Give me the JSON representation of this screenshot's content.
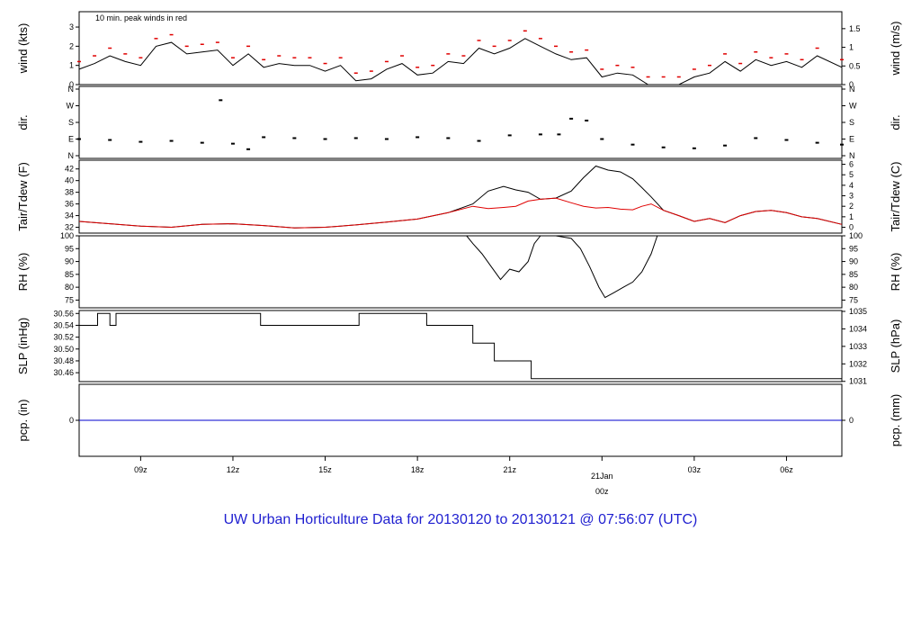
{
  "title": "UW Urban Horticulture Data for 20130120  to  20130121 @ 07:56:07  (UTC)",
  "colors": {
    "title": "#1f1fd0",
    "accent": "#e00000",
    "frame": "#000000",
    "precip": "#0000cc"
  },
  "chart_data": [
    {
      "type": "line",
      "panel": "wind",
      "ylabel_left": "wind (kts)",
      "ylabel_right": "wind (m/s)",
      "annotation": "10 min. peak winds in red",
      "ylim": [
        0,
        3.8
      ],
      "yticks_left": [
        "0",
        "1",
        "2",
        "3"
      ],
      "yticks_right": [
        "0",
        "0.5",
        "1",
        "1.5"
      ],
      "series": [
        {
          "values_hours": [
            7.0,
            7.5,
            8.0,
            8.5,
            9.0,
            9.5,
            10.0,
            10.5,
            11.0,
            11.5,
            12.0,
            12.5,
            13.0,
            13.5,
            14.0,
            14.5,
            15.0,
            15.5,
            16.0,
            16.5,
            17.0,
            17.5,
            18.0,
            18.5,
            19.0,
            19.5,
            20.0,
            20.5,
            21.0,
            21.5,
            22.0,
            22.5,
            23.0,
            23.5,
            24.0,
            24.5,
            25.0,
            25.5,
            26.0,
            26.5,
            27.0,
            27.5,
            28.0,
            28.5,
            29.0,
            29.5,
            30.0,
            30.5,
            31.0,
            31.8
          ],
          "values": [
            0.8,
            1.1,
            1.5,
            1.2,
            1.0,
            2.0,
            2.2,
            1.6,
            1.7,
            1.8,
            1.0,
            1.6,
            0.9,
            1.1,
            1.0,
            1.0,
            0.7,
            1.0,
            0.2,
            0.3,
            0.8,
            1.1,
            0.5,
            0.6,
            1.2,
            1.1,
            1.9,
            1.6,
            1.9,
            2.4,
            2.0,
            1.6,
            1.3,
            1.4,
            0.4,
            0.6,
            0.5,
            0.0,
            0.0,
            0.0,
            0.4,
            0.6,
            1.2,
            0.7,
            1.3,
            1.0,
            1.2,
            0.9,
            1.5,
            0.9
          ]
        }
      ]
    },
    {
      "type": "scatter",
      "panel": "direction",
      "ylabel_left": "dir.",
      "ylabel_right": "dir.",
      "yticks_left": [
        "N",
        "E",
        "S",
        "W",
        "N"
      ],
      "yticks_right": [
        "N",
        "E",
        "S",
        "W",
        "N"
      ],
      "series": [
        {
          "values_hours": [
            7.0,
            8.0,
            9.0,
            10.0,
            11.0,
            11.6,
            12.0,
            12.5,
            13.0,
            14.0,
            15.0,
            16.0,
            17.0,
            18.0,
            19.0,
            20.0,
            21.0,
            22.0,
            22.6,
            23.0,
            23.5,
            24.0,
            25.0,
            26.0,
            27.0,
            28.0,
            29.0,
            30.0,
            31.0,
            31.8
          ],
          "values": [
            90,
            85,
            75,
            80,
            70,
            300,
            65,
            35,
            100,
            95,
            90,
            95,
            90,
            100,
            95,
            80,
            110,
            115,
            115,
            200,
            190,
            90,
            60,
            45,
            40,
            55,
            95,
            85,
            70,
            60
          ]
        }
      ]
    },
    {
      "type": "line",
      "panel": "temperature",
      "ylabel_left": "Tair/Tdew (F)",
      "ylabel_right": "Tair/Tdew (C)",
      "ylim": [
        31,
        43.5
      ],
      "yticks_left": [
        "32",
        "34",
        "36",
        "38",
        "40",
        "42"
      ],
      "yticks_right": [
        "0",
        "1",
        "2",
        "3",
        "4",
        "5",
        "6"
      ],
      "series": [
        {
          "name": "Tair",
          "values_hours": [
            7.0,
            8.0,
            9.0,
            10.0,
            11.0,
            12.0,
            13.0,
            14.0,
            15.0,
            16.0,
            17.0,
            18.0,
            19.0,
            19.8,
            20.3,
            20.8,
            21.2,
            21.6,
            22.0,
            22.5,
            23.0,
            23.4,
            23.8,
            24.2,
            24.6,
            25.0,
            25.3,
            25.6,
            26.0,
            26.5,
            27.0,
            27.5,
            28.0,
            28.5,
            29.0,
            29.5,
            30.0,
            30.5,
            31.0,
            31.8
          ],
          "values": [
            33.0,
            32.6,
            32.2,
            32.0,
            32.5,
            32.6,
            32.3,
            31.9,
            32.0,
            32.4,
            32.9,
            33.4,
            34.5,
            36.0,
            38.2,
            39.0,
            38.4,
            38.0,
            36.8,
            37.0,
            38.2,
            40.5,
            42.5,
            41.8,
            41.5,
            40.3,
            38.8,
            37.2,
            34.9,
            34.0,
            33.0,
            33.5,
            32.8,
            34.0,
            34.7,
            34.9,
            34.5,
            33.8,
            33.5,
            32.5
          ]
        },
        {
          "name": "Tdew",
          "values_hours": [
            7.0,
            8.0,
            9.0,
            10.0,
            11.0,
            12.0,
            13.0,
            14.0,
            15.0,
            16.0,
            17.0,
            18.0,
            19.0,
            19.8,
            20.3,
            20.8,
            21.2,
            21.6,
            22.0,
            22.5,
            23.0,
            23.4,
            23.8,
            24.2,
            24.6,
            25.0,
            25.3,
            25.6,
            26.0,
            26.5,
            27.0,
            27.5,
            28.0,
            28.5,
            29.0,
            29.5,
            30.0,
            30.5,
            31.0,
            31.8
          ],
          "values": [
            33.0,
            32.6,
            32.2,
            32.0,
            32.5,
            32.6,
            32.3,
            31.9,
            32.0,
            32.4,
            32.9,
            33.4,
            34.5,
            35.6,
            35.2,
            35.4,
            35.6,
            36.5,
            36.8,
            37.0,
            36.2,
            35.6,
            35.3,
            35.4,
            35.1,
            35.0,
            35.6,
            36.0,
            34.9,
            34.0,
            33.0,
            33.5,
            32.8,
            34.0,
            34.7,
            34.9,
            34.5,
            33.8,
            33.5,
            32.5
          ]
        }
      ]
    },
    {
      "type": "line",
      "panel": "humidity",
      "ylabel_left": "RH (%)",
      "ylabel_right": "RH (%)",
      "ylim": [
        72,
        100
      ],
      "yticks_left": [
        "75",
        "80",
        "85",
        "90",
        "95",
        "100"
      ],
      "yticks_right": [
        "75",
        "80",
        "85",
        "90",
        "95",
        "100"
      ],
      "series": [
        {
          "values_hours": [
            7.0,
            19.6,
            19.8,
            20.1,
            20.4,
            20.7,
            21.0,
            21.3,
            21.6,
            21.8,
            22.0,
            22.5,
            23.0,
            23.3,
            23.6,
            23.9,
            24.1,
            24.4,
            24.7,
            25.0,
            25.3,
            25.6,
            25.8,
            31.8
          ],
          "values": [
            100,
            100,
            97,
            93,
            88,
            83,
            87,
            86,
            90,
            97,
            100,
            100,
            99,
            95,
            88,
            80,
            76,
            78,
            80,
            82,
            86,
            93,
            100,
            100
          ]
        }
      ]
    },
    {
      "type": "line",
      "panel": "pressure",
      "ylabel_left": "SLP (inHg)",
      "ylabel_right": "SLP (hPa)",
      "ylim": [
        30.445,
        30.565
      ],
      "yticks_left": [
        "30.46",
        "30.48",
        "30.50",
        "30.52",
        "30.54",
        "30.56"
      ],
      "yticks_right": [
        "1031",
        "1032",
        "1033",
        "1034",
        "1035"
      ],
      "series": [
        {
          "values_hours": [
            7.0,
            7.6,
            7.6,
            8.0,
            8.0,
            8.2,
            8.2,
            12.9,
            12.9,
            16.1,
            16.1,
            18.3,
            18.3,
            19.8,
            19.8,
            20.5,
            20.5,
            21.7,
            21.7,
            31.8
          ],
          "values": [
            30.54,
            30.54,
            30.56,
            30.56,
            30.54,
            30.54,
            30.56,
            30.56,
            30.54,
            30.54,
            30.56,
            30.56,
            30.54,
            30.54,
            30.51,
            30.51,
            30.48,
            30.48,
            30.45,
            30.45
          ]
        }
      ]
    },
    {
      "type": "line",
      "panel": "precip",
      "ylabel_left": "pcp. (in)",
      "ylabel_right": "pcp. (mm)",
      "ylim": [
        -0.05,
        0.05
      ],
      "yticks_left": [
        "0"
      ],
      "yticks_right": [
        "0"
      ],
      "series": [
        {
          "values_hours": [
            7.0,
            31.8
          ],
          "values": [
            0,
            0
          ]
        }
      ]
    }
  ],
  "x_axis": {
    "range_hours": [
      7.0,
      31.8
    ],
    "ticks": [
      {
        "hour": 9,
        "label": "09z"
      },
      {
        "hour": 12,
        "label": "12z"
      },
      {
        "hour": 15,
        "label": "15z"
      },
      {
        "hour": 18,
        "label": "18z"
      },
      {
        "hour": 21,
        "label": "21z"
      },
      {
        "hour": 27,
        "label": "03z"
      },
      {
        "hour": 30,
        "label": "06z"
      }
    ],
    "date_marker": {
      "hour": 24,
      "date": "21Jan",
      "time": "00z"
    }
  }
}
